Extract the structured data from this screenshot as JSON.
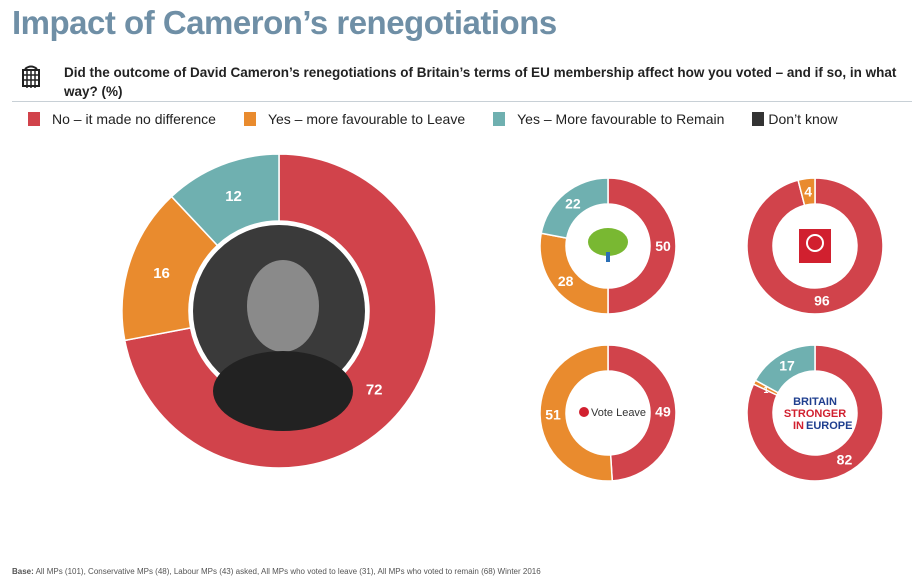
{
  "title": "Impact of Cameron’s renegotiations",
  "question": "Did the outcome of David Cameron’s renegotiations of Britain’s terms of EU membership affect how you voted – and if so, in what way? (%)",
  "legend": [
    {
      "label": "No – it made no difference",
      "color": "#d1434b"
    },
    {
      "label": "Yes – more favourable to Leave",
      "color": "#e98b2e"
    },
    {
      "label": "Yes – More favourable to Remain",
      "color": "#6fb0b0"
    },
    {
      "label": "Don’t know",
      "color": "#333333"
    }
  ],
  "chart_data": [
    {
      "type": "pie",
      "name": "All MPs",
      "center_image": "David Cameron photo",
      "values": [
        72,
        16,
        12,
        0
      ]
    },
    {
      "type": "pie",
      "name": "Conservative MPs",
      "center_image": "Conservative tree logo",
      "values": [
        50,
        28,
        22,
        0
      ]
    },
    {
      "type": "pie",
      "name": "Labour MPs",
      "center_image": "Labour rose logo",
      "values": [
        96,
        4,
        0,
        0
      ]
    },
    {
      "type": "pie",
      "name": "MPs who voted to leave",
      "center_image": "Vote Leave logo",
      "center_text": "Vote Leave",
      "values": [
        49,
        51,
        0,
        0
      ]
    },
    {
      "type": "pie",
      "name": "MPs who voted to remain",
      "center_image": "Britain Stronger In Europe logo",
      "center_text": [
        "BRITAIN",
        "STRONGER",
        "IN",
        "EUROPE"
      ],
      "values": [
        82,
        1,
        17,
        0
      ]
    }
  ],
  "base_label": "Base:",
  "base": "All MPs (101), Conservative MPs (48), Labour MPs (43) asked, All MPs who voted to leave (31), All MPs who voted to remain (68) Winter 2016"
}
